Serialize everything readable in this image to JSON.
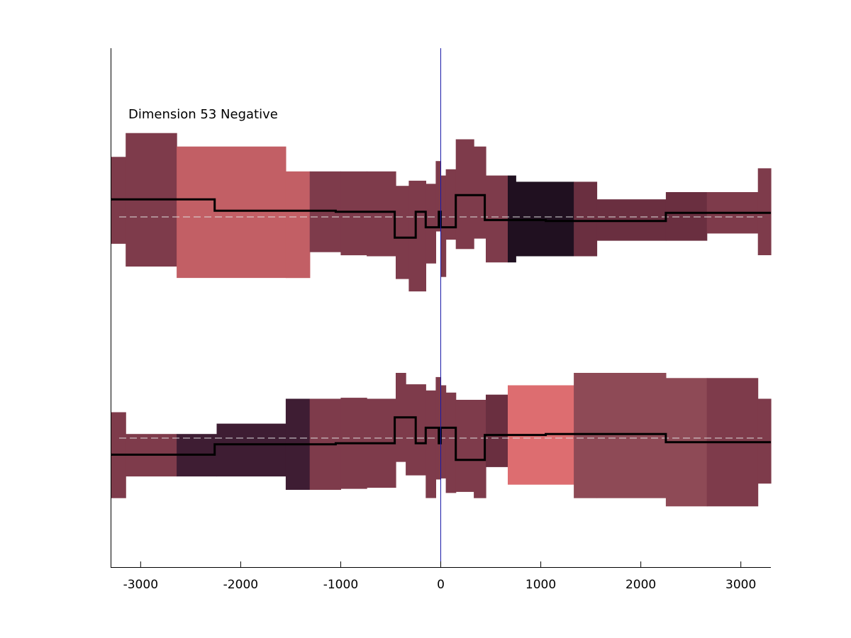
{
  "chart_data": {
    "type": "area",
    "title": "",
    "xlabel": "",
    "ylabel": "",
    "xlim": [
      -3300,
      3300
    ],
    "x_ticks": [
      -3000,
      -2000,
      -1000,
      0,
      1000,
      2000,
      3000
    ],
    "x_tick_labels": [
      "-3000",
      "-2000",
      "-1000",
      "0",
      "1000",
      "2000",
      "3000"
    ],
    "grid": false,
    "legend": "none",
    "annotation": "Dimension 53 Negative",
    "zero_line_color": "#1a1aa8",
    "baseline_color": "#dddddd",
    "mean_line_color": "#000000",
    "panels": [
      {
        "name": "upper",
        "ylim": [
          -1,
          1
        ],
        "baseline": 0,
        "bins": [
          {
            "x0": -3300,
            "x1": -3150,
            "upper": 0.58,
            "lower": -0.26,
            "color": "#7e3b4b"
          },
          {
            "x0": -3150,
            "x1": -2640,
            "upper": 0.81,
            "lower": -0.48,
            "color": "#7e3b4b"
          },
          {
            "x0": -2640,
            "x1": -1550,
            "upper": 0.68,
            "lower": -0.59,
            "color": "#c25f65"
          },
          {
            "x0": -1550,
            "x1": -1310,
            "upper": 0.44,
            "lower": -0.59,
            "color": "#c25f65"
          },
          {
            "x0": -1310,
            "x1": -1000,
            "upper": 0.44,
            "lower": -0.34,
            "color": "#7e3b4b"
          },
          {
            "x0": -1000,
            "x1": -740,
            "upper": 0.44,
            "lower": -0.37,
            "color": "#7e3b4b"
          },
          {
            "x0": -740,
            "x1": -450,
            "upper": 0.44,
            "lower": -0.38,
            "color": "#7e3b4b"
          },
          {
            "x0": -450,
            "x1": -320,
            "upper": 0.3,
            "lower": -0.6,
            "color": "#7e3b4b"
          },
          {
            "x0": -320,
            "x1": -150,
            "upper": 0.35,
            "lower": -0.72,
            "color": "#7e3b4b"
          },
          {
            "x0": -150,
            "x1": -50,
            "upper": 0.32,
            "lower": -0.45,
            "color": "#7e3b4b"
          },
          {
            "x0": -50,
            "x1": 0,
            "upper": 0.54,
            "lower": -0.14,
            "color": "#7e3b4b"
          },
          {
            "x0": 0,
            "x1": 50,
            "upper": 0.4,
            "lower": -0.58,
            "color": "#7e3b4b"
          },
          {
            "x0": 50,
            "x1": 150,
            "upper": 0.46,
            "lower": -0.22,
            "color": "#7e3b4b"
          },
          {
            "x0": 150,
            "x1": 330,
            "upper": 0.75,
            "lower": -0.31,
            "color": "#7e3b4b"
          },
          {
            "x0": 330,
            "x1": 450,
            "upper": 0.68,
            "lower": -0.21,
            "color": "#7e3b4b"
          },
          {
            "x0": 450,
            "x1": 670,
            "upper": 0.4,
            "lower": -0.44,
            "color": "#7e3b4b"
          },
          {
            "x0": 670,
            "x1": 750,
            "upper": 0.4,
            "lower": -0.44,
            "color": "#201020"
          },
          {
            "x0": 750,
            "x1": 1330,
            "upper": 0.34,
            "lower": -0.38,
            "color": "#201020"
          },
          {
            "x0": 1330,
            "x1": 1560,
            "upper": 0.34,
            "lower": -0.38,
            "color": "#6a2f40"
          },
          {
            "x0": 1560,
            "x1": 2250,
            "upper": 0.17,
            "lower": -0.23,
            "color": "#6a2f40"
          },
          {
            "x0": 2250,
            "x1": 2660,
            "upper": 0.24,
            "lower": -0.23,
            "color": "#6a2f40"
          },
          {
            "x0": 2660,
            "x1": 3170,
            "upper": 0.24,
            "lower": -0.16,
            "color": "#7e3b4b"
          },
          {
            "x0": 3170,
            "x1": 3300,
            "upper": 0.47,
            "lower": -0.37,
            "color": "#7e3b4b"
          }
        ],
        "mean": {
          "x": [
            -3300,
            -2260,
            -2260,
            -1050,
            -1050,
            -460,
            -460,
            -250,
            -250,
            -150,
            -150,
            -20,
            -20,
            0,
            0,
            150,
            150,
            440,
            440,
            1050,
            1050,
            2250,
            2250,
            3300
          ],
          "y": [
            0.17,
            0.17,
            0.06,
            0.06,
            0.05,
            0.05,
            -0.2,
            -0.2,
            0.05,
            0.05,
            -0.1,
            -0.1,
            0.05,
            0.05,
            -0.1,
            -0.1,
            0.21,
            0.21,
            -0.03,
            -0.03,
            -0.04,
            -0.04,
            0.04,
            0.04
          ]
        }
      },
      {
        "name": "lower",
        "ylim": [
          -1,
          1
        ],
        "baseline": 0,
        "bins": [
          {
            "x0": -3300,
            "x1": -3150,
            "upper": 0.25,
            "lower": -0.58,
            "color": "#7e3b4b"
          },
          {
            "x0": -3150,
            "x1": -2640,
            "upper": 0.04,
            "lower": -0.37,
            "color": "#7e3b4b"
          },
          {
            "x0": -2640,
            "x1": -2240,
            "upper": 0.04,
            "lower": -0.37,
            "color": "#3e1d33"
          },
          {
            "x0": -2240,
            "x1": -1550,
            "upper": 0.14,
            "lower": -0.37,
            "color": "#3e1d33"
          },
          {
            "x0": -1550,
            "x1": -1310,
            "upper": 0.38,
            "lower": -0.5,
            "color": "#3e1d33"
          },
          {
            "x0": -1310,
            "x1": -1000,
            "upper": 0.38,
            "lower": -0.5,
            "color": "#7e3b4b"
          },
          {
            "x0": -1000,
            "x1": -740,
            "upper": 0.39,
            "lower": -0.49,
            "color": "#7e3b4b"
          },
          {
            "x0": -740,
            "x1": -450,
            "upper": 0.38,
            "lower": -0.48,
            "color": "#7e3b4b"
          },
          {
            "x0": -450,
            "x1": -350,
            "upper": 0.63,
            "lower": -0.23,
            "color": "#7e3b4b"
          },
          {
            "x0": -350,
            "x1": -150,
            "upper": 0.52,
            "lower": -0.36,
            "color": "#7e3b4b"
          },
          {
            "x0": -150,
            "x1": -50,
            "upper": 0.46,
            "lower": -0.58,
            "color": "#7e3b4b"
          },
          {
            "x0": -50,
            "x1": 0,
            "upper": 0.59,
            "lower": -0.4,
            "color": "#7e3b4b"
          },
          {
            "x0": 0,
            "x1": 50,
            "upper": 0.51,
            "lower": -0.39,
            "color": "#7e3b4b"
          },
          {
            "x0": 50,
            "x1": 150,
            "upper": 0.44,
            "lower": -0.53,
            "color": "#7e3b4b"
          },
          {
            "x0": 150,
            "x1": 330,
            "upper": 0.37,
            "lower": -0.52,
            "color": "#7e3b4b"
          },
          {
            "x0": 330,
            "x1": 450,
            "upper": 0.37,
            "lower": -0.58,
            "color": "#7e3b4b"
          },
          {
            "x0": 450,
            "x1": 670,
            "upper": 0.42,
            "lower": -0.28,
            "color": "#6a2f40"
          },
          {
            "x0": 670,
            "x1": 1330,
            "upper": 0.51,
            "lower": -0.45,
            "color": "#dd6d70"
          },
          {
            "x0": 1330,
            "x1": 1560,
            "upper": 0.63,
            "lower": -0.58,
            "color": "#8e4a56"
          },
          {
            "x0": 1560,
            "x1": 2250,
            "upper": 0.63,
            "lower": -0.58,
            "color": "#8e4a56"
          },
          {
            "x0": 2250,
            "x1": 2660,
            "upper": 0.58,
            "lower": -0.66,
            "color": "#8e4a56"
          },
          {
            "x0": 2660,
            "x1": 3170,
            "upper": 0.58,
            "lower": -0.66,
            "color": "#7e3b4b"
          },
          {
            "x0": 3170,
            "x1": 3300,
            "upper": 0.38,
            "lower": -0.44,
            "color": "#7e3b4b"
          }
        ],
        "mean": {
          "x": [
            -3300,
            -2260,
            -2260,
            -1050,
            -1050,
            -460,
            -460,
            -250,
            -250,
            -150,
            -150,
            -20,
            -20,
            0,
            0,
            150,
            150,
            440,
            440,
            1050,
            1050,
            2250,
            2250,
            3300
          ],
          "y": [
            -0.16,
            -0.16,
            -0.06,
            -0.06,
            -0.05,
            -0.05,
            0.2,
            0.2,
            -0.05,
            -0.05,
            0.1,
            0.1,
            -0.05,
            -0.05,
            0.1,
            0.1,
            -0.21,
            -0.21,
            0.03,
            0.03,
            0.04,
            0.04,
            -0.04,
            -0.04
          ]
        }
      }
    ]
  }
}
